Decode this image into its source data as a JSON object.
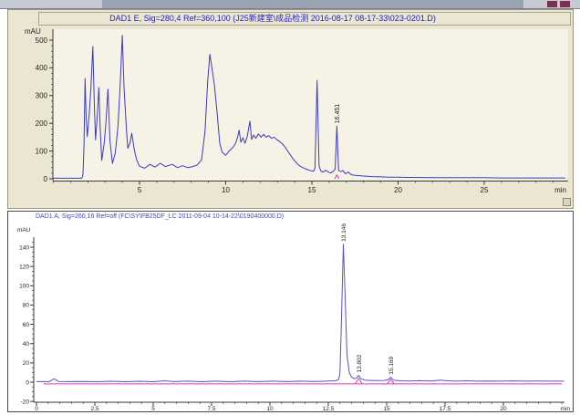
{
  "colors": {
    "panel_beige": "#eae6d1",
    "plot_interior": "#f6f3e6",
    "title_blue": "#2222cc",
    "bottom_title_blue": "#4a44c8",
    "trace_top": "#3a3ac8",
    "trace_bottom": "#5b50c8",
    "integration_magenta": "#e03ab8",
    "axis_dark": "#3a3a3a",
    "tick_label": "#222222",
    "window_strip": "#c6cad2",
    "window_strip_segment": "#9aa2b1",
    "window_accent": "#7c3150"
  },
  "chart_data": [
    {
      "type": "line",
      "title": "DAD1 E, Sig=280,4 Ref=360,100 (J25新建室\\成品检测 2016-08-17 08-17-33\\023-0201.D)",
      "xlabel": "min",
      "ylabel": "mAU",
      "xlim": [
        0,
        29.8
      ],
      "ylim": [
        -15,
        520
      ],
      "x_major_ticks": [
        "5",
        "10",
        "15",
        "20",
        "25"
      ],
      "x_major_values": [
        5,
        10,
        15,
        20,
        25
      ],
      "x_minor_step": 1,
      "y_major_ticks": [
        "0",
        "100",
        "200",
        "300",
        "400",
        "500"
      ],
      "y_major_values": [
        0,
        100,
        200,
        300,
        400,
        500
      ],
      "y_minor_step": 20,
      "peaks": [
        {
          "time": 16.451,
          "label": "16.451",
          "height_mAU": 190
        }
      ],
      "integration_marks": [
        [
          [
            16.33,
            0
          ],
          [
            16.45,
            14
          ],
          [
            16.58,
            0
          ]
        ]
      ],
      "series": [
        {
          "name": "DAD1 E 280nm",
          "points": [
            [
              0,
              2
            ],
            [
              1.2,
              2
            ],
            [
              1.65,
              2
            ],
            [
              1.72,
              15
            ],
            [
              1.78,
              120
            ],
            [
              1.84,
              362
            ],
            [
              1.9,
              230
            ],
            [
              1.97,
              152
            ],
            [
              2.08,
              230
            ],
            [
              2.18,
              330
            ],
            [
              2.29,
              477
            ],
            [
              2.38,
              260
            ],
            [
              2.45,
              140
            ],
            [
              2.55,
              230
            ],
            [
              2.64,
              329
            ],
            [
              2.72,
              180
            ],
            [
              2.81,
              66
            ],
            [
              2.95,
              130
            ],
            [
              3.05,
              200
            ],
            [
              3.17,
              323
            ],
            [
              3.28,
              140
            ],
            [
              3.43,
              55
            ],
            [
              3.6,
              95
            ],
            [
              3.75,
              190
            ],
            [
              3.88,
              340
            ],
            [
              4.0,
              517
            ],
            [
              4.1,
              330
            ],
            [
              4.22,
              197
            ],
            [
              4.32,
              110
            ],
            [
              4.45,
              130
            ],
            [
              4.55,
              164
            ],
            [
              4.68,
              110
            ],
            [
              4.82,
              70
            ],
            [
              5.0,
              45
            ],
            [
              5.3,
              38
            ],
            [
              5.6,
              52
            ],
            [
              5.9,
              42
            ],
            [
              6.2,
              56
            ],
            [
              6.5,
              44
            ],
            [
              6.9,
              52
            ],
            [
              7.2,
              40
            ],
            [
              7.5,
              47
            ],
            [
              7.8,
              40
            ],
            [
              8.1,
              44
            ],
            [
              8.35,
              50
            ],
            [
              8.6,
              68
            ],
            [
              8.8,
              170
            ],
            [
              8.95,
              350
            ],
            [
              9.08,
              449
            ],
            [
              9.2,
              400
            ],
            [
              9.35,
              335
            ],
            [
              9.5,
              240
            ],
            [
              9.65,
              130
            ],
            [
              9.8,
              95
            ],
            [
              10.0,
              85
            ],
            [
              10.2,
              100
            ],
            [
              10.4,
              112
            ],
            [
              10.55,
              125
            ],
            [
              10.68,
              148
            ],
            [
              10.78,
              175
            ],
            [
              10.88,
              132
            ],
            [
              11.0,
              148
            ],
            [
              11.12,
              128
            ],
            [
              11.25,
              152
            ],
            [
              11.4,
              208
            ],
            [
              11.5,
              142
            ],
            [
              11.62,
              158
            ],
            [
              11.75,
              146
            ],
            [
              11.9,
              162
            ],
            [
              12.05,
              150
            ],
            [
              12.2,
              160
            ],
            [
              12.35,
              150
            ],
            [
              12.5,
              156
            ],
            [
              12.65,
              146
            ],
            [
              12.8,
              150
            ],
            [
              12.95,
              142
            ],
            [
              13.1,
              136
            ],
            [
              13.25,
              128
            ],
            [
              13.4,
              118
            ],
            [
              13.55,
              104
            ],
            [
              13.75,
              86
            ],
            [
              13.95,
              68
            ],
            [
              14.15,
              54
            ],
            [
              14.35,
              44
            ],
            [
              14.55,
              38
            ],
            [
              14.75,
              33
            ],
            [
              14.95,
              29
            ],
            [
              15.1,
              27
            ],
            [
              15.18,
              40
            ],
            [
              15.3,
              355
            ],
            [
              15.42,
              45
            ],
            [
              15.52,
              28
            ],
            [
              15.65,
              24
            ],
            [
              15.8,
              31
            ],
            [
              15.95,
              24
            ],
            [
              16.1,
              21
            ],
            [
              16.25,
              28
            ],
            [
              16.35,
              35
            ],
            [
              16.451,
              190
            ],
            [
              16.55,
              30
            ],
            [
              16.68,
              26
            ],
            [
              16.8,
              30
            ],
            [
              16.95,
              18
            ],
            [
              17.1,
              24
            ],
            [
              17.3,
              14
            ],
            [
              17.6,
              12
            ],
            [
              18,
              10
            ],
            [
              18.5,
              8
            ],
            [
              19,
              7
            ],
            [
              19.5,
              6
            ],
            [
              20,
              6
            ],
            [
              20.5,
              5
            ],
            [
              21,
              5
            ],
            [
              22,
              4
            ],
            [
              23,
              4
            ],
            [
              24,
              4
            ],
            [
              25,
              4
            ],
            [
              26,
              3
            ],
            [
              27,
              3
            ],
            [
              28,
              3
            ],
            [
              29,
              3
            ],
            [
              29.7,
              3
            ]
          ]
        }
      ]
    },
    {
      "type": "line",
      "title": "DAD1 A, Sig=260,16 Ref=off (FC\\SY\\FB25DF_LC 2011-09-04 10-14-22\\0190400000.D)",
      "xlabel": "min",
      "ylabel": "mAU",
      "xlim": [
        0,
        22.6
      ],
      "ylim": [
        -20,
        150
      ],
      "x_major_ticks": [
        "0",
        "2.5",
        "5",
        "7.5",
        "10",
        "12.5",
        "15",
        "17.5",
        "20"
      ],
      "x_major_values": [
        0,
        2.5,
        5,
        7.5,
        10,
        12.5,
        15,
        17.5,
        20
      ],
      "x_minor_step": 0.5,
      "y_major_ticks": [
        "-20",
        "0",
        "20",
        "40",
        "60",
        "80",
        "100",
        "120",
        "140"
      ],
      "y_major_values": [
        -20,
        0,
        20,
        40,
        60,
        80,
        100,
        120,
        140
      ],
      "y_minor_step": 5,
      "peaks": [
        {
          "time": 13.146,
          "label": "13.146",
          "height_mAU": 143
        },
        {
          "time": 13.8,
          "label": "13.802",
          "height_mAU": 7
        },
        {
          "time": 15.17,
          "label": "15.169",
          "height_mAU": 5
        }
      ],
      "integration_baseline": {
        "from_min": 0.3,
        "to_min": 22.5,
        "level_mAU": -1.8
      },
      "integration_marks": [
        [
          [
            13.65,
            -1.8
          ],
          [
            13.8,
            4
          ],
          [
            13.95,
            -1.8
          ]
        ],
        [
          [
            15.02,
            -1.8
          ],
          [
            15.17,
            3
          ],
          [
            15.32,
            -1.8
          ]
        ]
      ],
      "series": [
        {
          "name": "DAD1 A 260nm",
          "points": [
            [
              0,
              0.6
            ],
            [
              0.55,
              0.6
            ],
            [
              0.75,
              3.5
            ],
            [
              0.95,
              0.8
            ],
            [
              1.4,
              0.6
            ],
            [
              2,
              0.8
            ],
            [
              2.6,
              0.5
            ],
            [
              3.2,
              0.9
            ],
            [
              3.8,
              0.5
            ],
            [
              4.4,
              0.9
            ],
            [
              5,
              0.5
            ],
            [
              5.5,
              1.4
            ],
            [
              5.9,
              0.6
            ],
            [
              6.5,
              1
            ],
            [
              7.1,
              0.5
            ],
            [
              7.7,
              1
            ],
            [
              8.3,
              0.5
            ],
            [
              8.9,
              1
            ],
            [
              9.5,
              0.6
            ],
            [
              10.1,
              1
            ],
            [
              10.7,
              0.6
            ],
            [
              11.3,
              1
            ],
            [
              11.9,
              0.8
            ],
            [
              12.4,
              1
            ],
            [
              12.8,
              1.4
            ],
            [
              12.95,
              3
            ],
            [
              13.0,
              10
            ],
            [
              13.06,
              60
            ],
            [
              13.146,
              143
            ],
            [
              13.22,
              90
            ],
            [
              13.3,
              28
            ],
            [
              13.4,
              10
            ],
            [
              13.5,
              5
            ],
            [
              13.62,
              3.5
            ],
            [
              13.72,
              4.5
            ],
            [
              13.8,
              7
            ],
            [
              13.9,
              3.5
            ],
            [
              14.1,
              2
            ],
            [
              14.5,
              1.6
            ],
            [
              14.9,
              1.8
            ],
            [
              15.05,
              2.5
            ],
            [
              15.17,
              5
            ],
            [
              15.3,
              2
            ],
            [
              15.6,
              1.4
            ],
            [
              16,
              1.2
            ],
            [
              16.4,
              1.5
            ],
            [
              16.9,
              1.2
            ],
            [
              17.3,
              2.2
            ],
            [
              17.6,
              1.4
            ],
            [
              18,
              1
            ],
            [
              18.4,
              1.4
            ],
            [
              18.9,
              1
            ],
            [
              19.4,
              1.2
            ],
            [
              19.9,
              1
            ],
            [
              20.4,
              1.3
            ],
            [
              20.9,
              1
            ],
            [
              21.4,
              1.1
            ],
            [
              21.9,
              1
            ],
            [
              22.4,
              1
            ],
            [
              22.6,
              1
            ]
          ]
        }
      ]
    }
  ]
}
